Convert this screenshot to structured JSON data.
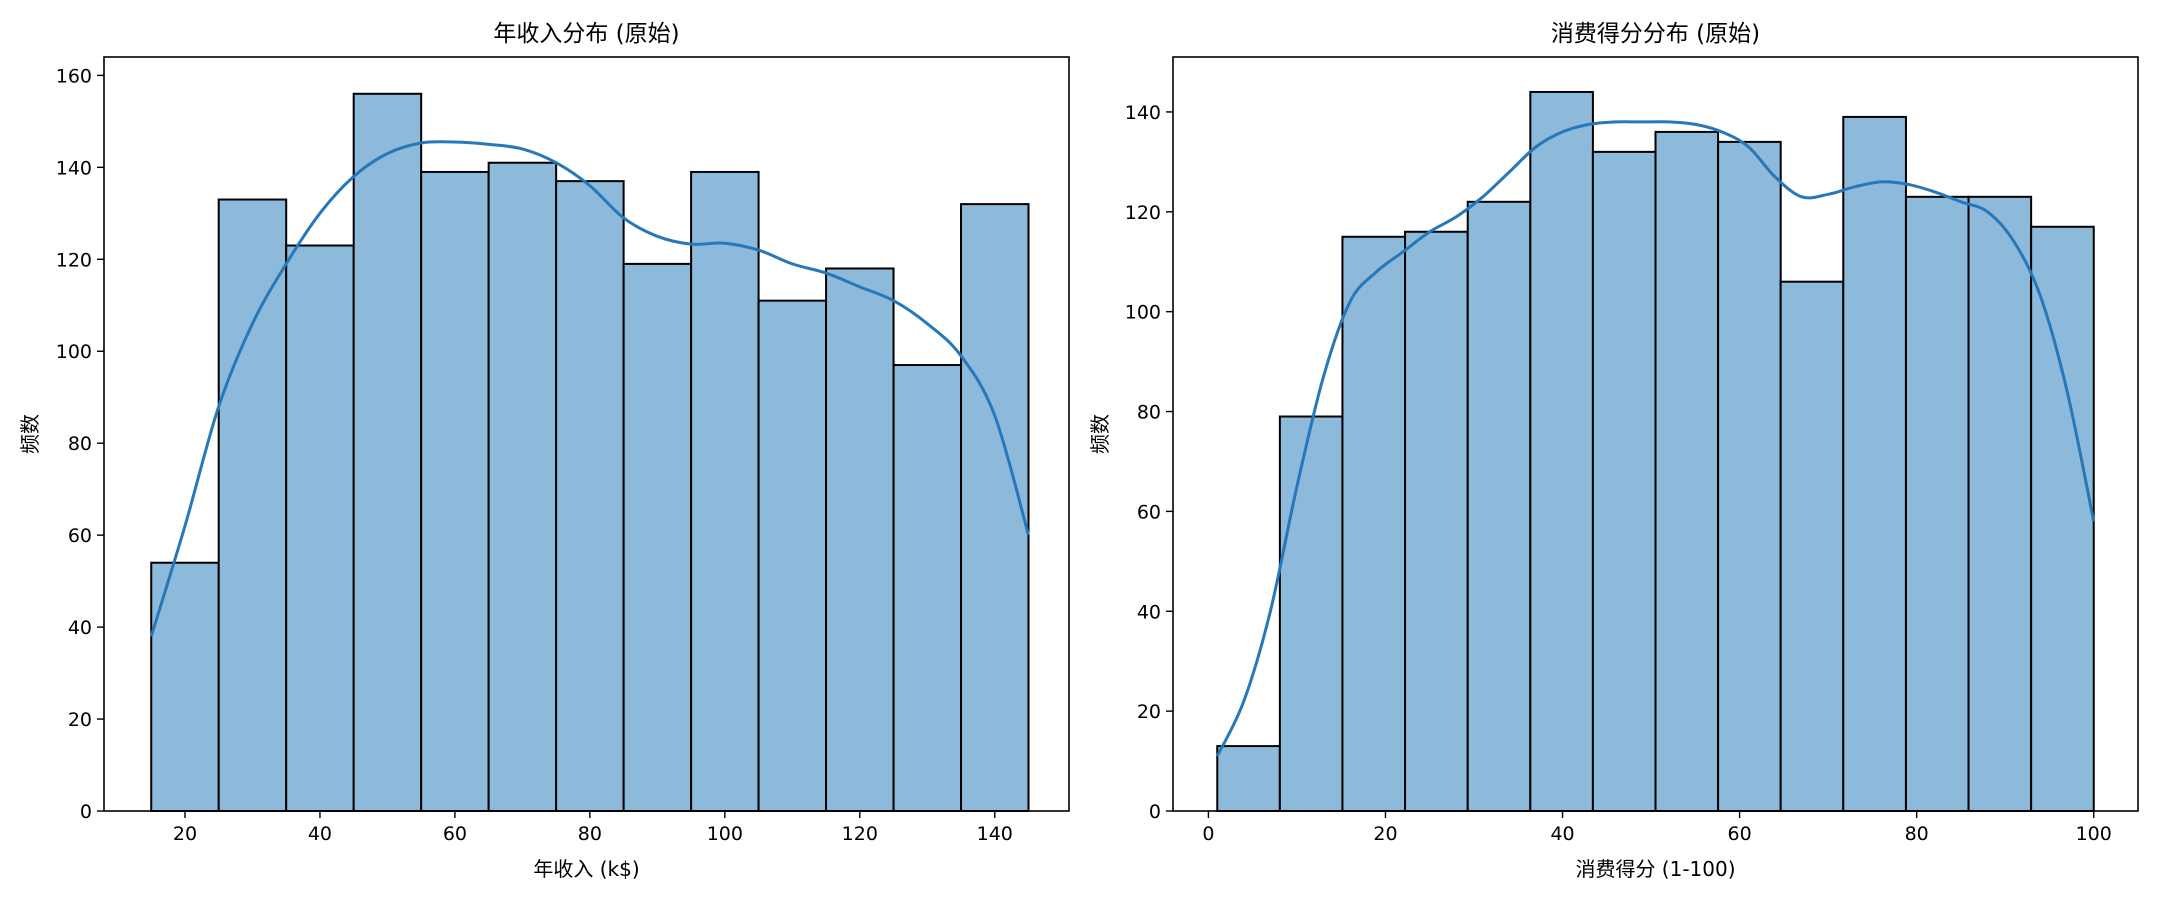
{
  "chart_data": [
    {
      "type": "bar",
      "subtype": "histogram_with_kde",
      "title": "年收入分布 (原始)",
      "xlabel": "年收入 (k$)",
      "ylabel": "频数",
      "xlim": [
        8,
        151
      ],
      "ylim": [
        0,
        164
      ],
      "xticks": [
        20,
        40,
        60,
        80,
        100,
        120,
        140
      ],
      "yticks": [
        0,
        20,
        40,
        60,
        80,
        100,
        120,
        140,
        160
      ],
      "bin_edges": [
        15,
        25,
        35,
        45,
        55,
        65,
        75,
        85,
        95,
        105,
        115,
        125,
        135,
        145
      ],
      "values": [
        54,
        133,
        123,
        156,
        139,
        141,
        137,
        119,
        139,
        111,
        118,
        97,
        132
      ],
      "kde": {
        "x": [
          15,
          20,
          25,
          30,
          35,
          40,
          45,
          50,
          55,
          60,
          65,
          70,
          75,
          80,
          85,
          90,
          95,
          100,
          105,
          110,
          115,
          120,
          125,
          130,
          135,
          140,
          145
        ],
        "y": [
          38,
          62,
          88,
          106,
          119,
          130,
          138,
          143,
          145.3,
          145.5,
          145,
          144,
          141,
          136,
          129,
          125,
          123.3,
          123.5,
          122,
          119,
          117,
          114,
          111,
          106,
          99,
          86,
          60
        ]
      },
      "bar_fill": "#8db9db",
      "bar_edge": "#000000",
      "kde_color": "#2678b8",
      "grid": false
    },
    {
      "type": "bar",
      "subtype": "histogram_with_kde",
      "title": "消费得分分布 (原始)",
      "xlabel": "消费得分 (1-100)",
      "ylabel": "频数",
      "xlim": [
        -4,
        105
      ],
      "ylim": [
        0,
        151
      ],
      "xticks": [
        0,
        20,
        40,
        60,
        80,
        100
      ],
      "yticks": [
        0,
        20,
        40,
        60,
        80,
        100,
        120,
        140
      ],
      "bin_edges": [
        1,
        8.07,
        15.14,
        22.21,
        29.29,
        36.36,
        43.43,
        50.5,
        57.57,
        64.64,
        71.71,
        78.79,
        85.86,
        92.93,
        100
      ],
      "values": [
        13,
        79,
        115,
        116,
        122,
        144,
        132,
        136,
        134,
        106,
        139,
        123,
        123,
        117
      ],
      "kde": {
        "x": [
          1,
          4,
          7,
          10,
          13,
          16,
          19,
          22,
          25,
          28,
          31,
          34,
          37,
          40,
          43,
          46,
          49,
          52,
          55,
          58,
          61,
          64,
          67,
          70,
          73,
          76,
          79,
          82,
          85,
          88,
          91,
          94,
          97,
          100
        ],
        "y": [
          11,
          22,
          40,
          65,
          87,
          102,
          108,
          112,
          116,
          119,
          123,
          128,
          133,
          136,
          137.5,
          138,
          138,
          138,
          137.5,
          136,
          133,
          127,
          123,
          123.5,
          125,
          126,
          125.5,
          124,
          122,
          120,
          114,
          103,
          84,
          58
        ]
      },
      "bar_fill": "#8db9db",
      "bar_edge": "#000000",
      "kde_color": "#2678b8",
      "grid": false
    }
  ]
}
